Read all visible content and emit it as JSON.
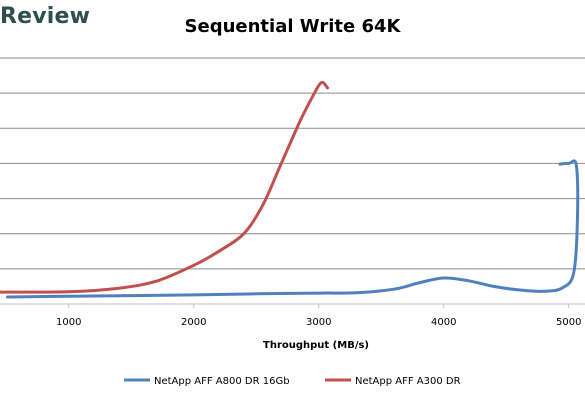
{
  "header": {
    "brand": "Review"
  },
  "chart_data": {
    "type": "line",
    "title": "Sequential Write 64K",
    "xlabel": "Throughput (MB/s)",
    "ylabel": "",
    "xlim": [
      450,
      5130
    ],
    "ylim": [
      0,
      7
    ],
    "xticks": [
      1000,
      2000,
      3000,
      4000,
      5000
    ],
    "xtick_labels": [
      "1000",
      "2000",
      "3000",
      "4000",
      "5000"
    ],
    "grid": "horizontal",
    "legend": "bottom",
    "series": [
      {
        "name": "NetApp AFF A800 DR 16Gb",
        "color": "#4f81bd",
        "points": [
          [
            510,
            0.2
          ],
          [
            1000,
            0.22
          ],
          [
            1500,
            0.24
          ],
          [
            2000,
            0.26
          ],
          [
            2500,
            0.29
          ],
          [
            3000,
            0.31
          ],
          [
            3300,
            0.32
          ],
          [
            3600,
            0.42
          ],
          [
            3800,
            0.6
          ],
          [
            4000,
            0.74
          ],
          [
            4200,
            0.66
          ],
          [
            4400,
            0.5
          ],
          [
            4600,
            0.4
          ],
          [
            4800,
            0.36
          ],
          [
            4950,
            0.46
          ],
          [
            5040,
            0.9
          ],
          [
            5070,
            2.5
          ],
          [
            5060,
            3.95
          ],
          [
            5000,
            4.0
          ],
          [
            4930,
            3.98
          ]
        ]
      },
      {
        "name": "NetApp AFF A300 DR",
        "color": "#c0504d",
        "points": [
          [
            450,
            0.34
          ],
          [
            1000,
            0.35
          ],
          [
            1400,
            0.45
          ],
          [
            1700,
            0.65
          ],
          [
            2000,
            1.1
          ],
          [
            2200,
            1.5
          ],
          [
            2400,
            2.0
          ],
          [
            2550,
            2.8
          ],
          [
            2700,
            4.0
          ],
          [
            2850,
            5.2
          ],
          [
            2950,
            5.9
          ],
          [
            3020,
            6.3
          ],
          [
            3070,
            6.15
          ]
        ]
      }
    ]
  }
}
